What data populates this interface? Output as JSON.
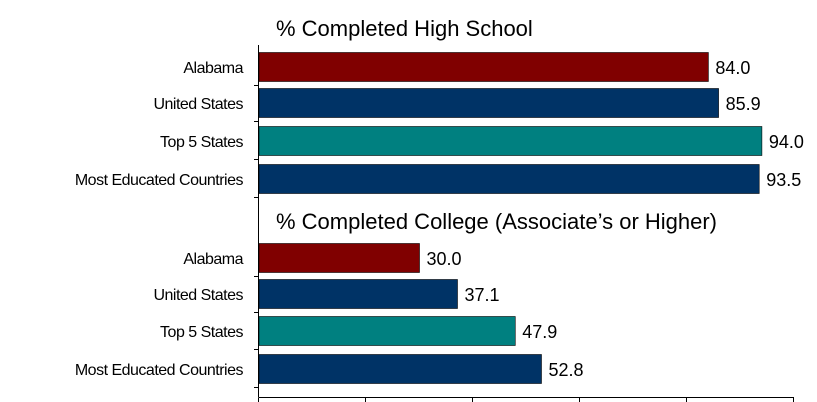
{
  "chart_data": {
    "type": "bar",
    "orientation": "horizontal",
    "x_axis": {
      "min": 0,
      "max": 100,
      "tick_step": 20,
      "tick_labels_shown": false
    },
    "grid": false,
    "legend": "none",
    "colors": {
      "Alabama": "#800000",
      "United States": "#003366",
      "Top 5 States": "#008080",
      "Most Educated Countries": "#003366"
    },
    "panels": [
      {
        "title": "% Completed High School",
        "categories": [
          "Alabama",
          "United States",
          "Top 5 States",
          "Most Educated Countries"
        ],
        "values": [
          84.0,
          85.9,
          94.0,
          93.5
        ],
        "value_labels": [
          "84.0",
          "85.9",
          "94.0",
          "93.5"
        ]
      },
      {
        "title": "% Completed College (Associate’s or Higher)",
        "categories": [
          "Alabama",
          "United States",
          "Top 5 States",
          "Most Educated Countries"
        ],
        "values": [
          30.0,
          37.1,
          47.9,
          52.8
        ],
        "value_labels": [
          "30.0",
          "37.1",
          "47.9",
          "52.8"
        ]
      }
    ]
  }
}
